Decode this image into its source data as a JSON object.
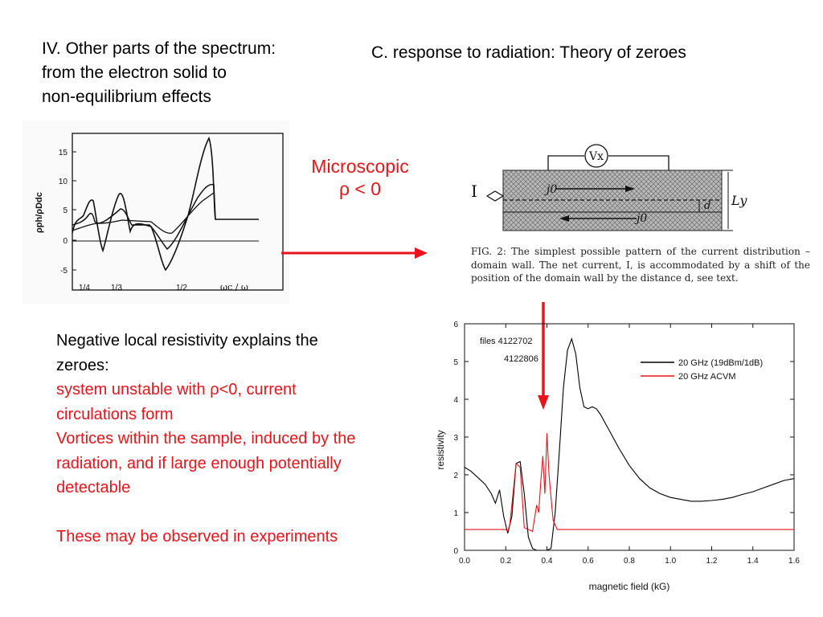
{
  "slide": {
    "title_left": [
      "IV. Other parts of the spectrum:",
      "from the electron solid to",
      "non-equilibrium effects"
    ],
    "title_right": "C. response to radiation: Theory of zeroes",
    "microscopic": {
      "line1": "Microscopic",
      "line2": "ρ < 0"
    },
    "bullets": {
      "line1": "Negative local resistivity explains the zeroes:",
      "red1": "system unstable with ρ<0, current circulations form",
      "red2": "Vortices within the sample, induced by the radiation, and if large enough potentially detectable",
      "red3": "These may be observed in experiments"
    }
  },
  "theory_plot": {
    "ylabel": "ρph/ρDdc",
    "yticks": [
      "15",
      "10",
      "5",
      "0",
      "-5"
    ],
    "xticks": [
      "1/4",
      "1/3",
      "1/2"
    ],
    "xlabel": "ωc / ω"
  },
  "schematic": {
    "voltmeter": "Vx",
    "current": "I",
    "j_top": "j0",
    "j_bottom": "j0",
    "d": "d",
    "ly": "Ly"
  },
  "fig_caption": "FIG. 2: The simplest possible pattern of the current distribution – domain wall. The net current, I, is accommodated by a shift of the position of the domain wall by the distance d, see text.",
  "colors": {
    "accent_red": "#e8141c"
  },
  "chart_data": {
    "type": "line",
    "title": "",
    "xlabel": "magnetic field (kG)",
    "ylabel": "resistivity",
    "xlim": [
      0.0,
      1.6
    ],
    "ylim": [
      0,
      6
    ],
    "xticks": [
      "0.0",
      "0.2",
      "0.4",
      "0.6",
      "0.8",
      "1.0",
      "1.2",
      "1.4",
      "1.6"
    ],
    "yticks": [
      "0",
      "1",
      "2",
      "3",
      "4",
      "5",
      "6"
    ],
    "annotation": [
      "files 4122702",
      "4122806"
    ],
    "legend_position": "top-right",
    "series": [
      {
        "name": "20 GHz (19dBm/1dB)",
        "color": "#000000",
        "x": [
          0.0,
          0.03,
          0.06,
          0.1,
          0.13,
          0.15,
          0.17,
          0.19,
          0.21,
          0.23,
          0.25,
          0.27,
          0.29,
          0.31,
          0.33,
          0.35,
          0.37,
          0.4,
          0.42,
          0.44,
          0.46,
          0.48,
          0.5,
          0.52,
          0.54,
          0.56,
          0.58,
          0.6,
          0.62,
          0.64,
          0.66,
          0.7,
          0.75,
          0.8,
          0.85,
          0.9,
          0.95,
          1.0,
          1.05,
          1.1,
          1.15,
          1.2,
          1.25,
          1.3,
          1.35,
          1.4,
          1.45,
          1.5,
          1.55,
          1.6
        ],
        "y": [
          2.2,
          2.1,
          1.95,
          1.75,
          1.5,
          1.25,
          1.6,
          0.9,
          0.45,
          0.9,
          2.3,
          2.35,
          1.5,
          0.35,
          0.05,
          0.0,
          0.0,
          0.0,
          0.05,
          1.0,
          2.6,
          4.3,
          5.3,
          5.6,
          5.2,
          4.3,
          3.8,
          3.75,
          3.8,
          3.75,
          3.6,
          3.2,
          2.7,
          2.25,
          1.9,
          1.65,
          1.5,
          1.4,
          1.35,
          1.3,
          1.3,
          1.32,
          1.35,
          1.4,
          1.48,
          1.55,
          1.65,
          1.75,
          1.85,
          1.9
        ]
      },
      {
        "name": "20 GHz ACVM",
        "color": "#e8141c",
        "x": [
          0.0,
          0.05,
          0.1,
          0.15,
          0.2,
          0.21,
          0.22,
          0.23,
          0.25,
          0.27,
          0.29,
          0.31,
          0.33,
          0.35,
          0.36,
          0.37,
          0.38,
          0.39,
          0.4,
          0.41,
          0.42,
          0.43,
          0.45,
          0.5,
          0.6,
          0.8,
          1.0,
          1.2,
          1.4,
          1.6
        ],
        "y": [
          0.55,
          0.55,
          0.55,
          0.55,
          0.55,
          0.5,
          0.7,
          1.2,
          2.3,
          2.2,
          0.6,
          0.55,
          0.5,
          1.2,
          1.0,
          1.8,
          2.5,
          1.5,
          3.1,
          2.0,
          1.4,
          0.8,
          0.55,
          0.55,
          0.55,
          0.55,
          0.55,
          0.55,
          0.55,
          0.55
        ]
      }
    ]
  }
}
